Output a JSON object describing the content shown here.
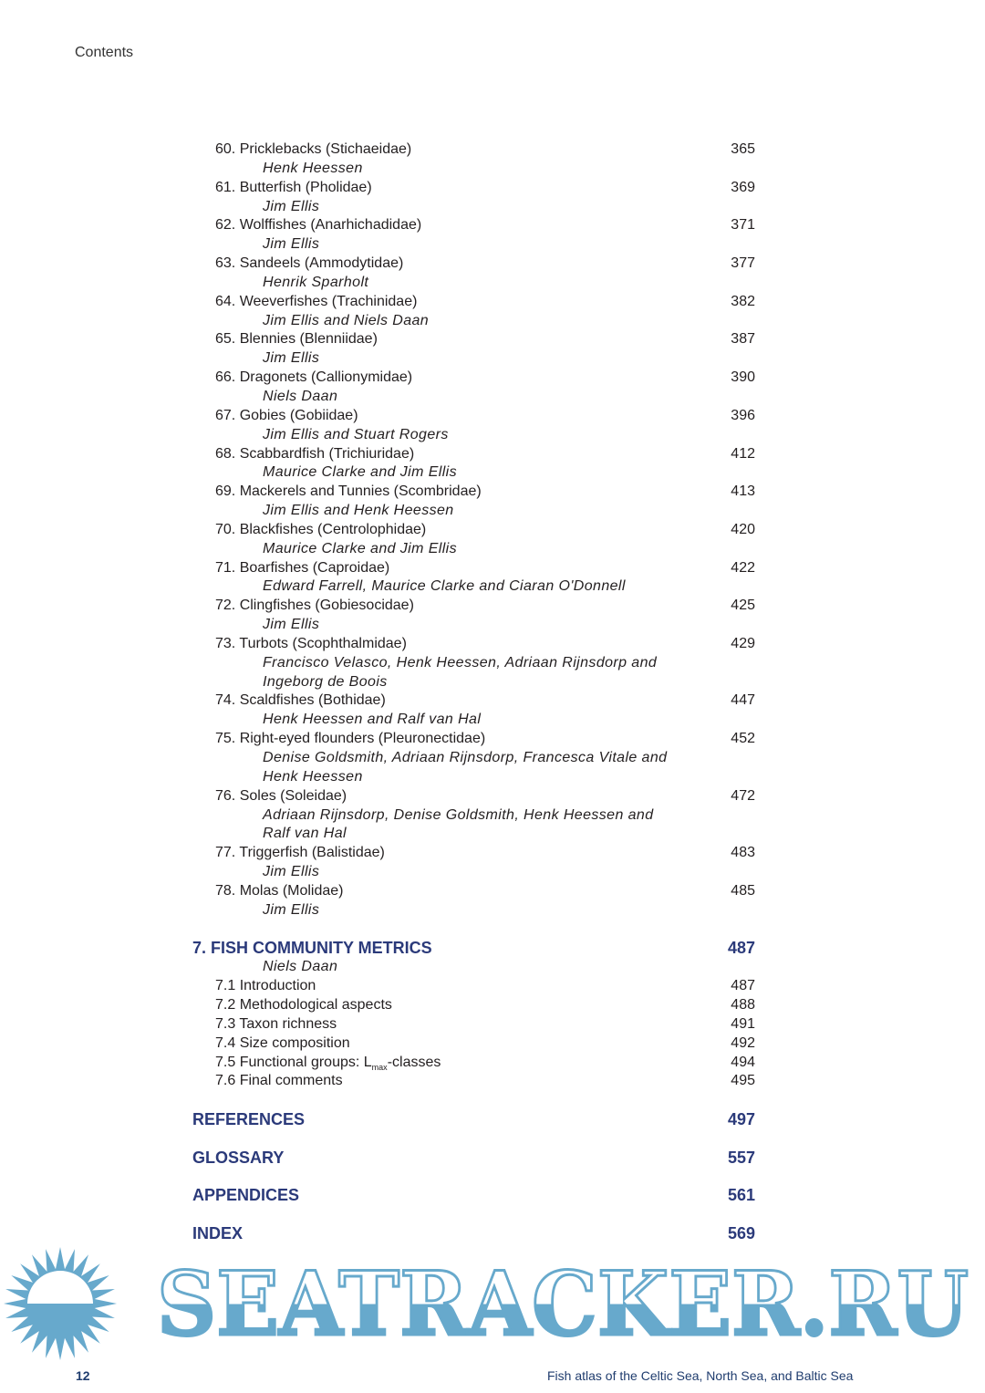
{
  "header": {
    "running_title": "Contents"
  },
  "entries": [
    {
      "title": "60. Pricklebacks (Stichaeidae)",
      "page": "365",
      "authors": [
        "Henk Heessen"
      ]
    },
    {
      "title": "61. Butterfish (Pholidae)",
      "page": "369",
      "authors": [
        "Jim Ellis"
      ]
    },
    {
      "title": "62. Wolffishes (Anarhichadidae)",
      "page": "371",
      "authors": [
        "Jim Ellis"
      ]
    },
    {
      "title": "63. Sandeels (Ammodytidae)",
      "page": "377",
      "authors": [
        "Henrik Sparholt"
      ]
    },
    {
      "title": "64. Weeverfishes (Trachinidae)",
      "page": "382",
      "authors": [
        "Jim Ellis and Niels Daan"
      ]
    },
    {
      "title": "65. Blennies (Blenniidae)",
      "page": "387",
      "authors": [
        "Jim Ellis"
      ]
    },
    {
      "title": "66. Dragonets (Callionymidae)",
      "page": "390",
      "authors": [
        "Niels Daan"
      ]
    },
    {
      "title": "67. Gobies (Gobiidae)",
      "page": "396",
      "authors": [
        "Jim Ellis and Stuart Rogers"
      ]
    },
    {
      "title": "68. Scabbardfish (Trichiuridae)",
      "page": "412",
      "authors": [
        "Maurice Clarke and Jim Ellis"
      ]
    },
    {
      "title": "69. Mackerels and Tunnies (Scombridae)",
      "page": "413",
      "authors": [
        "Jim Ellis and Henk Heessen"
      ]
    },
    {
      "title": "70. Blackfishes (Centrolophidae)",
      "page": "420",
      "authors": [
        "Maurice Clarke and Jim Ellis"
      ]
    },
    {
      "title": "71. Boarfishes (Caproidae)",
      "page": "422",
      "authors": [
        "Edward Farrell, Maurice Clarke and Ciaran O'Donnell"
      ]
    },
    {
      "title": "72. Clingfishes (Gobiesocidae)",
      "page": "425",
      "authors": [
        "Jim Ellis"
      ]
    },
    {
      "title": "73. Turbots (Scophthalmidae)",
      "page": "429",
      "authors": [
        "Francisco Velasco, Henk Heessen, Adriaan Rijnsdorp and",
        "Ingeborg de Boois"
      ]
    },
    {
      "title": "74. Scaldfishes (Bothidae)",
      "page": "447",
      "authors": [
        "Henk Heessen and Ralf van Hal"
      ]
    },
    {
      "title": "75. Right-eyed flounders (Pleuronectidae)",
      "page": "452",
      "authors": [
        "Denise Goldsmith, Adriaan Rijnsdorp, Francesca Vitale and",
        "Henk Heessen"
      ]
    },
    {
      "title": "76. Soles (Soleidae)",
      "page": "472",
      "authors": [
        "Adriaan Rijnsdorp, Denise Goldsmith, Henk Heessen and",
        "Ralf van Hal"
      ]
    },
    {
      "title": "77. Triggerfish (Balistidae)",
      "page": "483",
      "authors": [
        "Jim Ellis"
      ]
    },
    {
      "title": "78. Molas (Molidae)",
      "page": "485",
      "authors": [
        "Jim Ellis"
      ]
    }
  ],
  "chapter7": {
    "title": "7. FISH COMMUNITY METRICS",
    "page": "487",
    "author": "Niels Daan",
    "subsections": [
      {
        "title": "7.1 Introduction",
        "page": "487"
      },
      {
        "title": "7.2 Methodological aspects",
        "page": "488"
      },
      {
        "title": "7.3 Taxon richness",
        "page": "491"
      },
      {
        "title": "7.4 Size composition",
        "page": "492"
      },
      {
        "title_pre": "7.5 Functional groups: L",
        "title_sub": "max",
        "title_post": "-classes",
        "page": "494"
      },
      {
        "title": "7.6 Final comments",
        "page": "495"
      }
    ]
  },
  "sections": [
    {
      "title": "REFERENCES",
      "page": "497"
    },
    {
      "title": "GLOSSARY",
      "page": "557"
    },
    {
      "title": "APPENDICES",
      "page": "561"
    },
    {
      "title": "INDEX",
      "page": "569"
    }
  ],
  "footer": {
    "page_number": "12",
    "book_title": "Fish atlas of the Celtic Sea, North Sea, and Baltic Sea"
  },
  "watermark": {
    "text": "SEATRACKER.RU",
    "color": "#67a9cc"
  },
  "colors": {
    "heading": "#2b3a7a",
    "text": "#231f20"
  }
}
